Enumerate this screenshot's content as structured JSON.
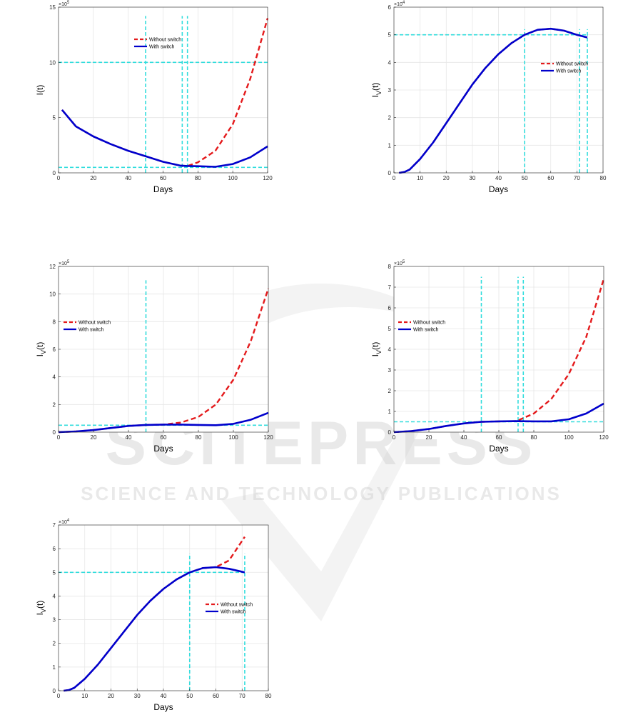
{
  "watermark": {
    "logo_text": "SCITEPRESS",
    "tagline": "SCIENCE AND TECHNOLOGY PUBLICATIONS"
  },
  "colors": {
    "without_switch": "#e41a1c",
    "with_switch": "#0000cc",
    "threshold": "#33dddd",
    "grid": "#e6e6e6"
  },
  "chart_data": [
    {
      "type": "line",
      "xlabel": "Days",
      "ylabel": "I(t)",
      "y_exponent": "×10",
      "y_exponent_power": "5",
      "xlim": [
        0,
        120
      ],
      "ylim": [
        0,
        15
      ],
      "xticks": [
        0,
        20,
        40,
        60,
        80,
        100,
        120
      ],
      "yticks": [
        0,
        5,
        10,
        15
      ],
      "legend": "top-center",
      "series": [
        {
          "name": "Without switch",
          "style": "dashed",
          "x": [
            2,
            10,
            20,
            30,
            40,
            50,
            60,
            70,
            74,
            80,
            90,
            100,
            110,
            120
          ],
          "y": [
            5.7,
            4.2,
            3.3,
            2.6,
            2.0,
            1.5,
            1.0,
            0.65,
            0.62,
            0.95,
            2.0,
            4.4,
            8.5,
            14.0
          ]
        },
        {
          "name": "With switch",
          "style": "solid",
          "x": [
            2,
            10,
            20,
            30,
            40,
            50,
            60,
            70,
            74,
            80,
            90,
            100,
            110,
            120
          ],
          "y": [
            5.7,
            4.2,
            3.3,
            2.6,
            2.0,
            1.5,
            1.0,
            0.65,
            0.62,
            0.6,
            0.55,
            0.8,
            1.4,
            2.4
          ]
        }
      ],
      "threshold_h": [
        10,
        0.5
      ],
      "threshold_v": [
        50,
        71,
        74
      ],
      "v_span": [
        0,
        14.2
      ]
    },
    {
      "type": "line",
      "xlabel": "Days",
      "ylabel": "I",
      "ylabel_sub": "V",
      "ylabel_tail": "(t)",
      "y_exponent": "×10",
      "y_exponent_power": "4",
      "xlim": [
        0,
        80
      ],
      "ylim": [
        0,
        6
      ],
      "xticks": [
        0,
        10,
        20,
        30,
        40,
        50,
        60,
        70,
        80
      ],
      "yticks": [
        0,
        1,
        2,
        3,
        4,
        5,
        6
      ],
      "legend": "right",
      "series": [
        {
          "name": "Without switch",
          "style": "dashed",
          "x": [
            2,
            4,
            6,
            10,
            15,
            20,
            25,
            30,
            35,
            40,
            45,
            50,
            55,
            60,
            65,
            70,
            74
          ],
          "y": [
            0,
            0.03,
            0.12,
            0.5,
            1.1,
            1.8,
            2.5,
            3.2,
            3.8,
            4.3,
            4.7,
            5.0,
            5.18,
            5.22,
            5.15,
            5.0,
            4.9
          ]
        },
        {
          "name": "With switch",
          "style": "solid",
          "x": [
            2,
            4,
            6,
            10,
            15,
            20,
            25,
            30,
            35,
            40,
            45,
            50,
            55,
            60,
            65,
            70,
            74
          ],
          "y": [
            0,
            0.03,
            0.12,
            0.5,
            1.1,
            1.8,
            2.5,
            3.2,
            3.8,
            4.3,
            4.7,
            5.0,
            5.18,
            5.22,
            5.15,
            5.0,
            4.9
          ]
        }
      ],
      "threshold_h": [
        5
      ],
      "threshold_h_end": 74,
      "threshold_v": [
        50,
        71,
        74
      ],
      "v_span": [
        0,
        5.2
      ]
    },
    {
      "type": "line",
      "xlabel": "Days",
      "ylabel": "I",
      "ylabel_sub": "V",
      "ylabel_tail": "(t)",
      "y_exponent": "×10",
      "y_exponent_power": "5",
      "xlim": [
        0,
        120
      ],
      "ylim": [
        0,
        12
      ],
      "xticks": [
        0,
        20,
        40,
        60,
        80,
        100,
        120
      ],
      "yticks": [
        0,
        2,
        4,
        6,
        8,
        10,
        12
      ],
      "legend": "left",
      "series": [
        {
          "name": "Without switch",
          "style": "dashed",
          "x": [
            0,
            10,
            20,
            30,
            40,
            50,
            60,
            70,
            80,
            90,
            100,
            110,
            120
          ],
          "y": [
            0,
            0.05,
            0.15,
            0.3,
            0.45,
            0.52,
            0.55,
            0.7,
            1.1,
            2.0,
            3.8,
            6.6,
            10.4
          ]
        },
        {
          "name": "With switch",
          "style": "solid",
          "x": [
            0,
            10,
            20,
            30,
            40,
            50,
            60,
            70,
            80,
            90,
            100,
            110,
            120
          ],
          "y": [
            0,
            0.05,
            0.15,
            0.3,
            0.45,
            0.52,
            0.55,
            0.55,
            0.52,
            0.5,
            0.6,
            0.9,
            1.4
          ]
        }
      ],
      "threshold_h": [
        0.5
      ],
      "threshold_v": [
        50
      ],
      "v_span": [
        0,
        11
      ]
    },
    {
      "type": "line",
      "xlabel": "Days",
      "ylabel": "I",
      "ylabel_sub": "V",
      "ylabel_tail": "(t)",
      "y_exponent": "×10",
      "y_exponent_power": "5",
      "xlim": [
        0,
        120
      ],
      "ylim": [
        0,
        8
      ],
      "xticks": [
        0,
        20,
        40,
        60,
        80,
        100,
        120
      ],
      "yticks": [
        0,
        1,
        2,
        3,
        4,
        5,
        6,
        7,
        8
      ],
      "legend": "left",
      "series": [
        {
          "name": "Without switch",
          "style": "dashed",
          "x": [
            0,
            10,
            20,
            30,
            40,
            50,
            60,
            70,
            80,
            90,
            100,
            110,
            120
          ],
          "y": [
            0,
            0.05,
            0.15,
            0.3,
            0.42,
            0.5,
            0.52,
            0.53,
            0.9,
            1.6,
            2.8,
            4.6,
            7.4
          ]
        },
        {
          "name": "With switch",
          "style": "solid",
          "x": [
            0,
            10,
            20,
            30,
            40,
            50,
            60,
            70,
            80,
            90,
            100,
            110,
            120
          ],
          "y": [
            0,
            0.05,
            0.15,
            0.3,
            0.42,
            0.5,
            0.52,
            0.53,
            0.52,
            0.52,
            0.62,
            0.9,
            1.38
          ]
        }
      ],
      "threshold_h": [
        0.5
      ],
      "threshold_v": [
        50,
        71,
        74
      ],
      "v_span": [
        0,
        7.5
      ]
    },
    {
      "type": "line",
      "xlabel": "Days",
      "ylabel": "I",
      "ylabel_sub": "V",
      "ylabel_tail": "(t)",
      "y_exponent": "×10",
      "y_exponent_power": "4",
      "xlim": [
        0,
        80
      ],
      "ylim": [
        0,
        7
      ],
      "xticks": [
        0,
        10,
        20,
        30,
        40,
        50,
        60,
        70,
        80
      ],
      "yticks": [
        0,
        1,
        2,
        3,
        4,
        5,
        6,
        7
      ],
      "legend": "right",
      "series": [
        {
          "name": "Without switch",
          "style": "dashed",
          "x": [
            2,
            4,
            6,
            10,
            15,
            20,
            25,
            30,
            35,
            40,
            45,
            50,
            55,
            60,
            65,
            71
          ],
          "y": [
            0,
            0.03,
            0.12,
            0.5,
            1.1,
            1.8,
            2.5,
            3.2,
            3.8,
            4.3,
            4.7,
            5.0,
            5.18,
            5.22,
            5.5,
            6.5
          ]
        },
        {
          "name": "With switch",
          "style": "solid",
          "x": [
            2,
            4,
            6,
            10,
            15,
            20,
            25,
            30,
            35,
            40,
            45,
            50,
            55,
            60,
            65,
            71
          ],
          "y": [
            0,
            0.03,
            0.12,
            0.5,
            1.1,
            1.8,
            2.5,
            3.2,
            3.8,
            4.3,
            4.7,
            5.0,
            5.18,
            5.22,
            5.15,
            5.0
          ]
        }
      ],
      "threshold_h": [
        5
      ],
      "threshold_h_end": 71,
      "threshold_v": [
        50,
        71
      ],
      "v_span": [
        0,
        5.8
      ]
    }
  ]
}
